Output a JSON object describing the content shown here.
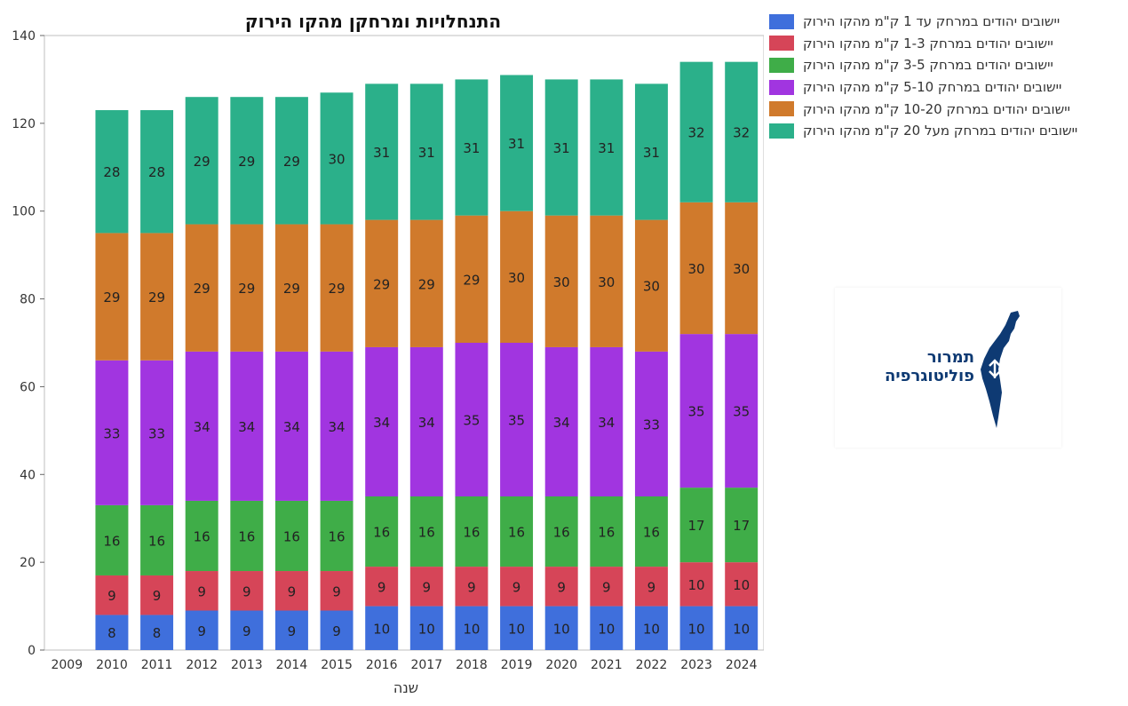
{
  "chart_data": {
    "type": "bar",
    "stacked": true,
    "title": "התנחלויות ומרחקן מהקו הירוק",
    "xlabel": "שנה",
    "ylabel": "",
    "ylim": [
      0,
      140
    ],
    "yticks": [
      0,
      20,
      40,
      60,
      80,
      100,
      120,
      140
    ],
    "categories": [
      "2009",
      "2010",
      "2011",
      "2012",
      "2013",
      "2014",
      "2015",
      "2016",
      "2017",
      "2018",
      "2019",
      "2020",
      "2021",
      "2022",
      "2023",
      "2024"
    ],
    "series": [
      {
        "name": "יישובים יהודים במרחק עד 1 ק\"מ מהקו הירוק",
        "color": "#3f6fdc",
        "values": [
          null,
          8,
          8,
          9,
          9,
          9,
          9,
          10,
          10,
          10,
          10,
          10,
          10,
          10,
          10,
          10
        ]
      },
      {
        "name": "יישובים יהודים במרחק 1-3 ק\"מ מהקו הירוק",
        "color": "#d64558",
        "values": [
          null,
          9,
          9,
          9,
          9,
          9,
          9,
          9,
          9,
          9,
          9,
          9,
          9,
          9,
          10,
          10
        ]
      },
      {
        "name": "יישובים יהודים במרחק 3-5 ק\"מ מהקו הירוק",
        "color": "#3fad48",
        "values": [
          null,
          16,
          16,
          16,
          16,
          16,
          16,
          16,
          16,
          16,
          16,
          16,
          16,
          16,
          17,
          17
        ]
      },
      {
        "name": "יישובים יהודים במרחק 5-10 ק\"מ מהקו הירוק",
        "color": "#a135e0",
        "values": [
          null,
          33,
          33,
          34,
          34,
          34,
          34,
          34,
          34,
          35,
          35,
          34,
          34,
          33,
          35,
          35
        ]
      },
      {
        "name": "יישובים יהודים במרחק 10-20 ק\"מ מהקו הירוק",
        "color": "#d07a2c",
        "values": [
          null,
          29,
          29,
          29,
          29,
          29,
          29,
          29,
          29,
          29,
          30,
          30,
          30,
          30,
          30,
          30
        ]
      },
      {
        "name": "יישובים יהודים במרחק מעל 20 ק\"מ מהקו הירוק",
        "color": "#2bb08a",
        "values": [
          null,
          28,
          28,
          29,
          29,
          29,
          30,
          31,
          31,
          31,
          31,
          31,
          31,
          31,
          32,
          32
        ]
      }
    ],
    "legend_position": "right",
    "grid": false
  },
  "logo": {
    "line1": "תמרור",
    "line2": "פוליטוגרפיה"
  }
}
